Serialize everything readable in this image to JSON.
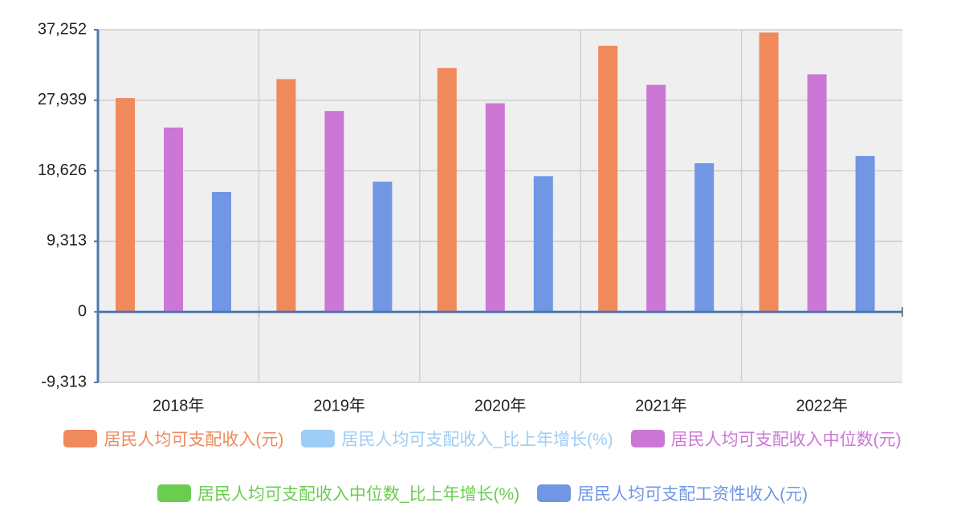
{
  "chart_data": {
    "type": "bar",
    "categories": [
      "2018年",
      "2019年",
      "2020年",
      "2021年",
      "2022年"
    ],
    "series": [
      {
        "name": "居民人均可支配收入(元)",
        "color": "#f0895b",
        "values": [
          28228,
          30733,
          32189,
          35128,
          36883
        ]
      },
      {
        "name": "居民人均可支配收入_比上年增长(%)",
        "color": "#9ecdf5",
        "values": [
          null,
          null,
          null,
          null,
          null
        ]
      },
      {
        "name": "居民人均可支配收入中位数(元)",
        "color": "#cc77d6",
        "values": [
          24336,
          26523,
          27540,
          29975,
          31370
        ]
      },
      {
        "name": "居民人均可支配收入中位数_比上年增长(%)",
        "color": "#6acd4f",
        "values": [
          null,
          null,
          null,
          null,
          null
        ]
      },
      {
        "name": "居民人均可支配工资性收入(元)",
        "color": "#7096e4",
        "values": [
          15829,
          17186,
          17917,
          19629,
          20590
        ]
      }
    ],
    "ylim": [
      -9313,
      37252
    ],
    "yticks": [
      {
        "value": -9313,
        "label": "-9,313"
      },
      0,
      {
        "value": 9313,
        "label": "9,313"
      },
      {
        "value": 18626,
        "label": "18,626"
      },
      {
        "value": 27939,
        "label": "27,939"
      },
      {
        "value": 37252,
        "label": "37,252"
      }
    ],
    "grid": true
  }
}
